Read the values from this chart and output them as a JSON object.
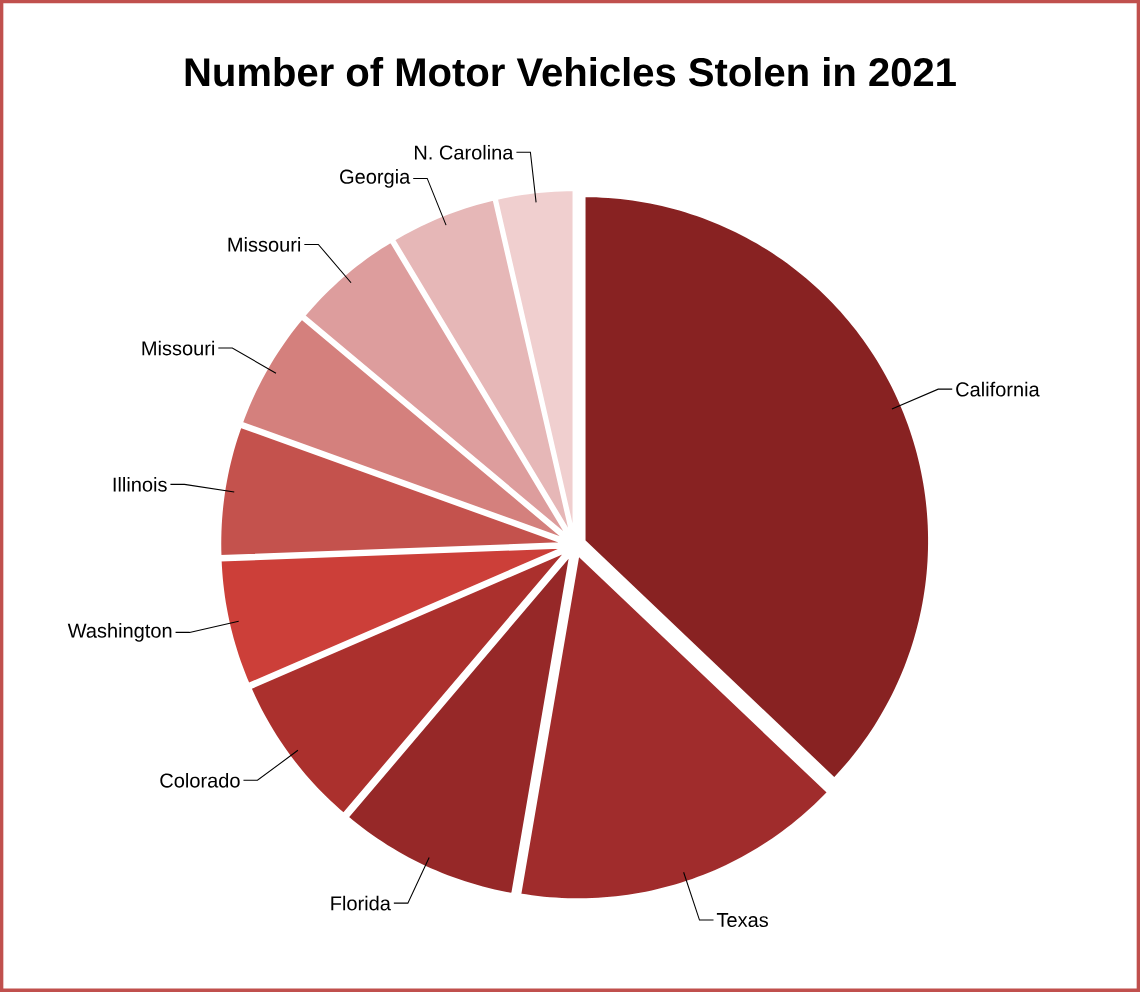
{
  "chart_data": {
    "type": "pie",
    "title": "Number of Motor Vehicles Stolen in 2021",
    "categories": [
      "California",
      "Texas",
      "Florida",
      "Colorado",
      "Washington",
      "Illinois",
      "Missouri",
      "Missouri",
      "Georgia",
      "N. Carolina"
    ],
    "values": [
      37.1,
      15.6,
      8.5,
      7.3,
      5.9,
      6.1,
      5.6,
      5.3,
      5.0,
      3.6
    ],
    "colors": [
      "#882222",
      "#a02c2c",
      "#962828",
      "#ab302d",
      "#cc3f39",
      "#c4524d",
      "#d4807d",
      "#dd9d9d",
      "#e6b7b7",
      "#f0cfcf"
    ]
  }
}
